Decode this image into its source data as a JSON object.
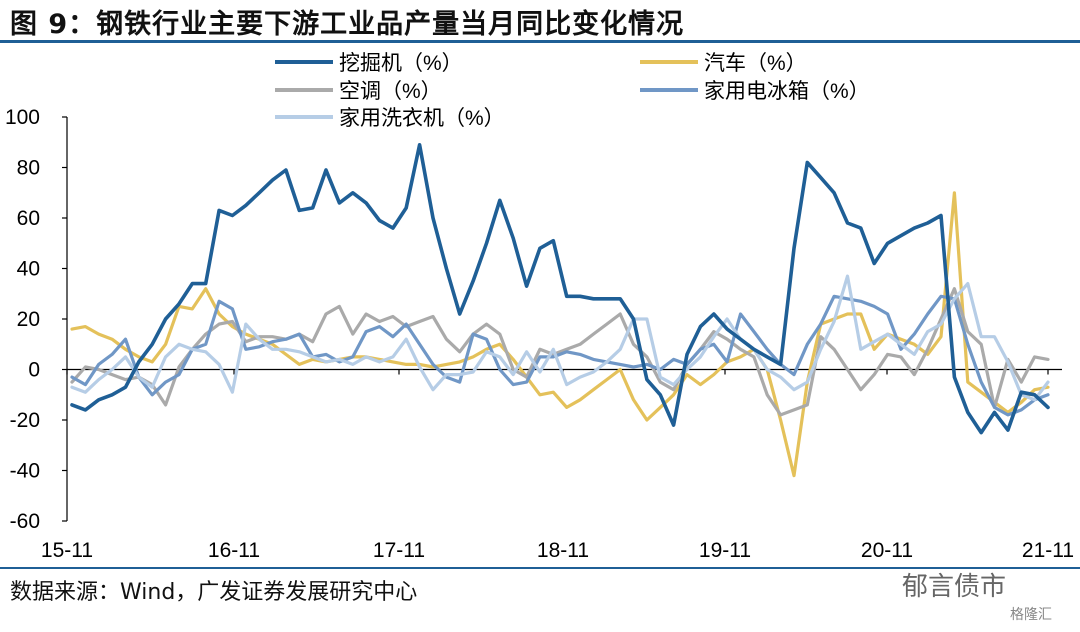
{
  "title": "图 9：钢铁行业主要下游工业品产量当月同比变化情况",
  "source": "数据来源：Wind，广发证券发展研究中心",
  "watermark": "郁言债市",
  "watermark_small": "格隆汇",
  "chart_data": {
    "type": "line",
    "title": "图 9：钢铁行业主要下游工业品产量当月同比变化情况",
    "xlabel": "",
    "ylabel": "",
    "ylim": [
      -60,
      100
    ],
    "yticks": [
      100,
      80,
      60,
      40,
      20,
      0,
      -20,
      -40,
      -60
    ],
    "xtick_labels": [
      "15-11",
      "16-11",
      "17-11",
      "18-11",
      "19-11",
      "20-11",
      "21-11"
    ],
    "x_range": [
      "2015-11",
      "2021-11"
    ],
    "grid": false,
    "legend_placement": "top",
    "series": [
      {
        "name": "挖掘机（%）",
        "color": "#1f5f96",
        "values": [
          -14,
          -16,
          -12,
          -10,
          -7,
          3,
          10,
          20,
          26,
          34,
          34,
          63,
          61,
          65,
          70,
          75,
          79,
          63,
          64,
          79,
          66,
          70,
          66,
          59,
          56,
          64,
          89,
          60,
          40,
          22,
          35,
          50,
          67,
          52,
          33,
          48,
          51,
          29,
          29,
          28,
          28,
          28,
          20,
          -4,
          -10,
          -22,
          6,
          17,
          22,
          16,
          12,
          8,
          5,
          2,
          48,
          82,
          76,
          70,
          58,
          56,
          42,
          50,
          53,
          56,
          58,
          61,
          -3,
          -17,
          -25,
          -17,
          -24,
          -9,
          -10,
          -15
        ]
      },
      {
        "name": "汽车（%）",
        "color": "#e4c15a",
        "values": [
          16,
          17,
          14,
          12,
          8,
          5,
          3,
          10,
          25,
          24,
          32,
          22,
          17,
          14,
          12,
          10,
          6,
          2,
          4,
          3,
          4,
          5,
          5,
          4,
          3,
          2,
          2,
          1,
          2,
          3,
          5,
          8,
          10,
          4,
          -3,
          -10,
          -9,
          -15,
          -12,
          -8,
          -4,
          0,
          -12,
          -20,
          -15,
          -10,
          -2,
          -6,
          -2,
          3,
          5,
          8,
          0,
          -20,
          -42,
          -5,
          18,
          20,
          22,
          22,
          8,
          14,
          12,
          10,
          6,
          13,
          70,
          -5,
          -9,
          -13,
          -17,
          -13,
          -8,
          -7
        ]
      },
      {
        "name": "空调（%）",
        "color": "#aaaaaa",
        "values": [
          -5,
          1,
          0,
          -2,
          -4,
          -3,
          -6,
          -14,
          1,
          8,
          14,
          18,
          19,
          11,
          13,
          13,
          12,
          14,
          11,
          22,
          25,
          14,
          22,
          19,
          21,
          17,
          19,
          21,
          12,
          7,
          14,
          18,
          14,
          0,
          -3,
          8,
          6,
          8,
          10,
          14,
          18,
          22,
          10,
          5,
          -5,
          -8,
          2,
          8,
          15,
          12,
          8,
          5,
          -10,
          -18,
          -16,
          -14,
          13,
          8,
          0,
          -8,
          -2,
          6,
          5,
          -2,
          8,
          20,
          32,
          15,
          10,
          -15,
          4,
          -5,
          5,
          4
        ]
      },
      {
        "name": "家用电冰箱（%）",
        "color": "#7097c6",
        "values": [
          -3,
          -6,
          2,
          6,
          12,
          -3,
          -10,
          -5,
          -2,
          8,
          10,
          27,
          24,
          8,
          9,
          11,
          12,
          14,
          5,
          6,
          3,
          5,
          15,
          17,
          13,
          18,
          10,
          2,
          -3,
          -5,
          14,
          12,
          0,
          -6,
          -5,
          5,
          5,
          7,
          6,
          4,
          3,
          2,
          1,
          2,
          0,
          4,
          2,
          8,
          10,
          3,
          22,
          15,
          8,
          2,
          -2,
          10,
          18,
          29,
          28,
          27,
          25,
          22,
          8,
          14,
          22,
          29,
          28,
          10,
          -5,
          -15,
          -18,
          -16,
          -12,
          -10
        ]
      },
      {
        "name": "家用洗衣机（%）",
        "color": "#b6cde6",
        "values": [
          -7,
          -9,
          -4,
          0,
          5,
          -3,
          -7,
          5,
          10,
          8,
          7,
          2,
          -9,
          18,
          12,
          8,
          8,
          7,
          5,
          3,
          4,
          2,
          5,
          3,
          5,
          12,
          1,
          -8,
          -2,
          -2,
          -1,
          7,
          5,
          -2,
          7,
          -1,
          8,
          -6,
          -3,
          -1,
          3,
          8,
          20,
          20,
          -3,
          -6,
          0,
          5,
          13,
          20,
          12,
          8,
          0,
          -3,
          -8,
          -5,
          8,
          19,
          37,
          8,
          11,
          14,
          10,
          6,
          15,
          18,
          28,
          34,
          13,
          13,
          3,
          -10,
          -12,
          -5
        ]
      }
    ]
  }
}
